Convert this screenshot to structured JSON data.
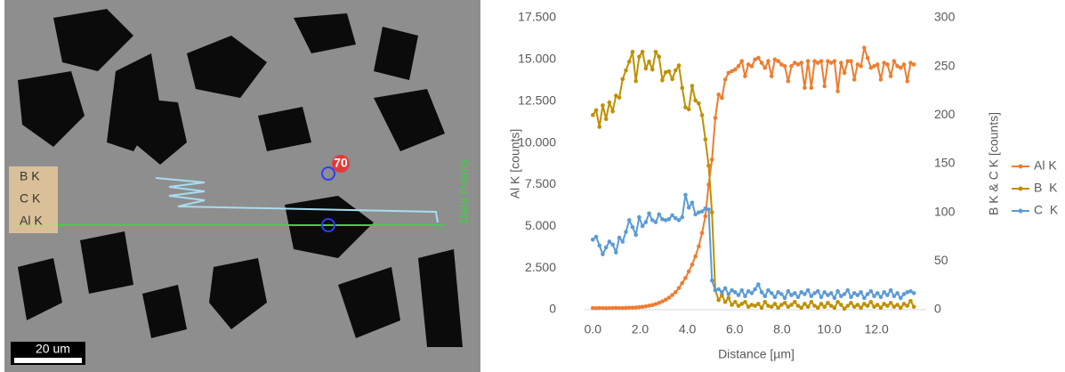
{
  "sem_image": {
    "scale_bar": "20 um",
    "marker_label": "70",
    "legend": [
      "B  K",
      "C  K",
      "Al K"
    ],
    "axis_label": "Data Points"
  },
  "chart_data": {
    "type": "line",
    "x_label": "Distance [µm]",
    "y_label": "Al K [counts]",
    "y2_label": "B K & C K [counts]",
    "x": [
      0.0,
      0.14,
      0.28,
      0.42,
      0.56,
      0.7,
      0.84,
      0.98,
      1.12,
      1.26,
      1.4,
      1.54,
      1.68,
      1.82,
      1.96,
      2.1,
      2.24,
      2.38,
      2.52,
      2.66,
      2.8,
      2.94,
      3.08,
      3.22,
      3.36,
      3.5,
      3.64,
      3.78,
      3.92,
      4.06,
      4.2,
      4.34,
      4.48,
      4.62,
      4.76,
      4.9,
      5.04,
      5.18,
      5.32,
      5.46,
      5.6,
      5.74,
      5.88,
      6.02,
      6.16,
      6.3,
      6.44,
      6.58,
      6.72,
      6.86,
      7.0,
      7.14,
      7.28,
      7.42,
      7.56,
      7.7,
      7.84,
      7.98,
      8.12,
      8.26,
      8.4,
      8.54,
      8.68,
      8.82,
      8.96,
      9.1,
      9.24,
      9.38,
      9.52,
      9.66,
      9.8,
      9.94,
      10.08,
      10.22,
      10.36,
      10.5,
      10.64,
      10.78,
      10.92,
      11.06,
      11.2,
      11.34,
      11.48,
      11.62,
      11.76,
      11.9,
      12.04,
      12.18,
      12.32,
      12.46,
      12.6,
      12.74,
      12.88,
      13.02,
      13.16,
      13.3,
      13.44,
      13.58
    ],
    "series": [
      {
        "name": "Al K",
        "color": "#ed7d31",
        "axis": "y",
        "values": [
          100,
          90,
          100,
          100,
          90,
          100,
          100,
          110,
          100,
          100,
          110,
          120,
          120,
          130,
          150,
          170,
          200,
          240,
          280,
          340,
          410,
          500,
          600,
          720,
          880,
          1050,
          1300,
          1600,
          1900,
          2300,
          2700,
          3200,
          3800,
          4600,
          5600,
          7500,
          9000,
          11500,
          12900,
          12700,
          13800,
          14200,
          14300,
          14400,
          14600,
          14900,
          14000,
          14700,
          14600,
          15000,
          15100,
          14800,
          14500,
          14900,
          14000,
          15000,
          14900,
          14700,
          14600,
          13700,
          14600,
          14800,
          14700,
          14800,
          13300,
          14900,
          13300,
          14900,
          14800,
          14900,
          13400,
          14900,
          14800,
          14900,
          13100,
          14800,
          14200,
          14900,
          14900,
          13800,
          14700,
          14600,
          15700,
          15100,
          14500,
          14600,
          14700,
          13800,
          14800,
          14700,
          14000,
          14900,
          14600,
          14500,
          14700,
          13700,
          14800,
          14700
        ]
      },
      {
        "name": "B  K",
        "color": "#bf9000",
        "axis": "y2",
        "values": [
          200,
          205,
          188,
          210,
          196,
          213,
          204,
          220,
          218,
          237,
          246,
          255,
          265,
          235,
          260,
          265,
          248,
          255,
          247,
          265,
          260,
          236,
          244,
          245,
          237,
          246,
          251,
          228,
          208,
          206,
          230,
          215,
          212,
          200,
          175,
          148,
          100,
          20,
          10,
          15,
          8,
          12,
          5,
          8,
          4,
          6,
          8,
          3,
          5,
          4,
          6,
          2,
          8,
          4,
          3,
          6,
          2,
          5,
          7,
          3,
          5,
          8,
          4,
          2,
          6,
          3,
          8,
          4,
          2,
          6,
          3,
          7,
          4,
          2,
          8,
          5,
          1,
          4,
          7,
          3,
          5,
          2,
          6,
          4,
          8,
          3,
          5,
          2,
          6,
          4,
          7,
          3,
          5,
          2,
          6,
          4,
          9,
          3
        ]
      },
      {
        "name": "C  K",
        "color": "#5b9bd5",
        "axis": "y2",
        "values": [
          72,
          75,
          66,
          57,
          64,
          70,
          67,
          59,
          74,
          70,
          80,
          92,
          85,
          77,
          95,
          86,
          90,
          99,
          92,
          90,
          98,
          93,
          92,
          93,
          97,
          94,
          92,
          95,
          118,
          105,
          110,
          98,
          100,
          101,
          104,
          103,
          30,
          20,
          21,
          18,
          22,
          16,
          20,
          18,
          15,
          20,
          14,
          19,
          17,
          21,
          26,
          18,
          14,
          20,
          17,
          13,
          18,
          16,
          12,
          19,
          15,
          17,
          13,
          18,
          16,
          20,
          14,
          17,
          19,
          13,
          18,
          15,
          17,
          12,
          19,
          14,
          16,
          20,
          13,
          17,
          15,
          18,
          12,
          16,
          19,
          14,
          17,
          13,
          18,
          15,
          20,
          14,
          17,
          12,
          16,
          18,
          19,
          17
        ]
      }
    ],
    "xlim": [
      -0.35,
      14.1
    ],
    "xticks": [
      {
        "value": 0,
        "label": "0.0"
      },
      {
        "value": 2,
        "label": "2.0"
      },
      {
        "value": 4,
        "label": "4.0"
      },
      {
        "value": 6,
        "label": "6.0"
      },
      {
        "value": 8,
        "label": "8.0"
      },
      {
        "value": 10,
        "label": "10.0"
      },
      {
        "value": 12,
        "label": "12.0"
      }
    ],
    "ylim": [
      0,
      17500
    ],
    "yticks": [
      0,
      {
        "value": 2500,
        "label": "2.500"
      },
      {
        "value": 5000,
        "label": "5.000"
      },
      {
        "value": 7500,
        "label": "7.500"
      },
      {
        "value": 10000,
        "label": "10.000"
      },
      {
        "value": 12500,
        "label": "12.500"
      },
      {
        "value": 15000,
        "label": "15.000"
      },
      {
        "value": 17500,
        "label": "17.500"
      }
    ],
    "y2lim": [
      0,
      300
    ],
    "y2ticks": [
      0,
      50,
      100,
      150,
      200,
      250,
      300
    ],
    "grid": false,
    "legend": "right"
  }
}
